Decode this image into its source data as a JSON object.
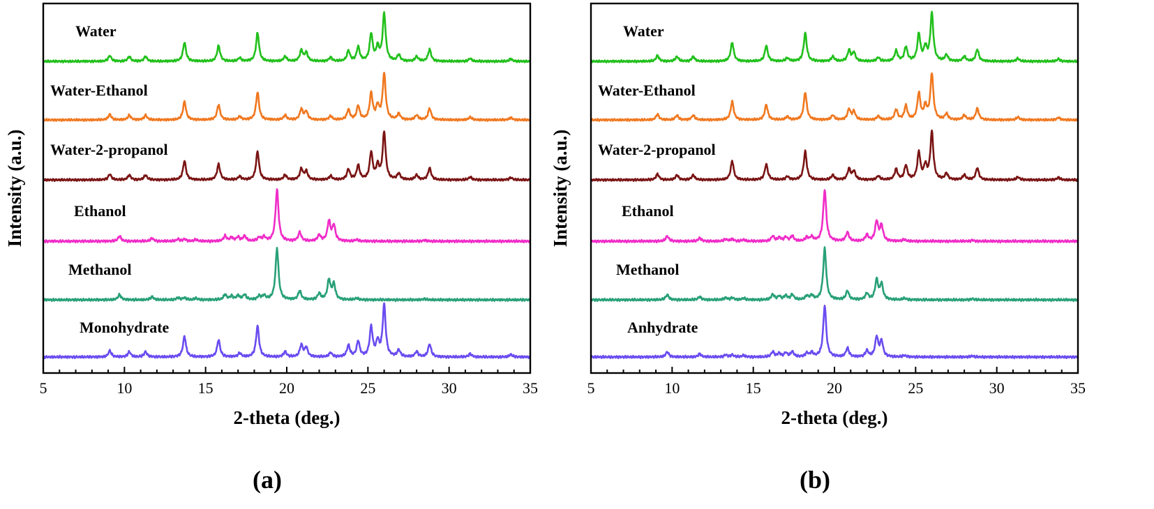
{
  "chart_data": [
    {
      "type": "line",
      "panel_label": "(a)",
      "xlabel": "2-theta (deg.)",
      "ylabel": "Intensity (a.u.)",
      "xlim": [
        5,
        35
      ],
      "xticks": [
        5,
        10,
        15,
        20,
        25,
        30,
        35
      ],
      "series": [
        {
          "name": "Water",
          "color": "#22c01c",
          "pattern": "A",
          "peaks": [
            [
              9.1,
              0.12
            ],
            [
              10.3,
              0.1
            ],
            [
              11.3,
              0.1
            ],
            [
              13.7,
              0.4
            ],
            [
              15.8,
              0.33
            ],
            [
              17.1,
              0.07
            ],
            [
              18.2,
              0.6
            ],
            [
              19.9,
              0.1
            ],
            [
              20.9,
              0.23
            ],
            [
              21.2,
              0.18
            ],
            [
              22.7,
              0.08
            ],
            [
              23.8,
              0.22
            ],
            [
              24.4,
              0.3
            ],
            [
              25.2,
              0.57
            ],
            [
              25.6,
              0.28
            ],
            [
              26.0,
              1.0
            ],
            [
              26.9,
              0.13
            ],
            [
              28.0,
              0.1
            ],
            [
              28.8,
              0.25
            ],
            [
              31.3,
              0.06
            ],
            [
              33.8,
              0.05
            ]
          ]
        },
        {
          "name": "Water-Ethanol",
          "color": "#f07820",
          "pattern": "A",
          "peaks": [
            [
              9.1,
              0.12
            ],
            [
              10.3,
              0.1
            ],
            [
              11.3,
              0.1
            ],
            [
              13.7,
              0.4
            ],
            [
              15.8,
              0.33
            ],
            [
              17.1,
              0.07
            ],
            [
              18.2,
              0.6
            ],
            [
              19.9,
              0.1
            ],
            [
              20.9,
              0.23
            ],
            [
              21.2,
              0.18
            ],
            [
              22.7,
              0.08
            ],
            [
              23.8,
              0.22
            ],
            [
              24.4,
              0.3
            ],
            [
              25.2,
              0.57
            ],
            [
              25.6,
              0.28
            ],
            [
              26.0,
              1.0
            ],
            [
              26.9,
              0.13
            ],
            [
              28.0,
              0.1
            ],
            [
              28.8,
              0.25
            ],
            [
              31.3,
              0.06
            ],
            [
              33.8,
              0.05
            ]
          ]
        },
        {
          "name": "Water-2-propanol",
          "color": "#7a1414",
          "pattern": "A",
          "peaks": [
            [
              9.1,
              0.12
            ],
            [
              10.3,
              0.1
            ],
            [
              11.3,
              0.1
            ],
            [
              13.7,
              0.4
            ],
            [
              15.8,
              0.33
            ],
            [
              17.1,
              0.07
            ],
            [
              18.2,
              0.6
            ],
            [
              19.9,
              0.1
            ],
            [
              20.9,
              0.23
            ],
            [
              21.2,
              0.18
            ],
            [
              22.7,
              0.08
            ],
            [
              23.8,
              0.22
            ],
            [
              24.4,
              0.3
            ],
            [
              25.2,
              0.57
            ],
            [
              25.6,
              0.28
            ],
            [
              26.0,
              1.0
            ],
            [
              26.9,
              0.13
            ],
            [
              28.0,
              0.1
            ],
            [
              28.8,
              0.25
            ],
            [
              31.3,
              0.06
            ],
            [
              33.8,
              0.05
            ]
          ]
        },
        {
          "name": "Ethanol",
          "color": "#f02cc8",
          "pattern": "B",
          "peaks": [
            [
              9.7,
              0.1
            ],
            [
              11.7,
              0.06
            ],
            [
              13.3,
              0.04
            ],
            [
              13.7,
              0.04
            ],
            [
              14.4,
              0.03
            ],
            [
              16.2,
              0.1
            ],
            [
              16.6,
              0.07
            ],
            [
              17.0,
              0.08
            ],
            [
              17.4,
              0.1
            ],
            [
              18.3,
              0.07
            ],
            [
              18.6,
              0.08
            ],
            [
              19.4,
              1.0
            ],
            [
              20.8,
              0.17
            ],
            [
              22.0,
              0.12
            ],
            [
              22.6,
              0.38
            ],
            [
              22.9,
              0.3
            ],
            [
              24.3,
              0.03
            ],
            [
              28.5,
              0.02
            ]
          ]
        },
        {
          "name": "Methanol",
          "color": "#28a078",
          "pattern": "B",
          "peaks": [
            [
              9.7,
              0.1
            ],
            [
              11.7,
              0.06
            ],
            [
              13.3,
              0.04
            ],
            [
              13.7,
              0.04
            ],
            [
              14.4,
              0.03
            ],
            [
              16.2,
              0.1
            ],
            [
              16.6,
              0.07
            ],
            [
              17.0,
              0.08
            ],
            [
              17.4,
              0.1
            ],
            [
              18.3,
              0.07
            ],
            [
              18.6,
              0.08
            ],
            [
              19.4,
              1.0
            ],
            [
              20.8,
              0.17
            ],
            [
              22.0,
              0.12
            ],
            [
              22.6,
              0.38
            ],
            [
              22.9,
              0.3
            ],
            [
              24.3,
              0.03
            ],
            [
              28.5,
              0.02
            ]
          ]
        },
        {
          "name": "Monohydrate",
          "color": "#6a4cf0",
          "pattern": "A",
          "peaks": [
            [
              9.1,
              0.12
            ],
            [
              10.3,
              0.1
            ],
            [
              11.3,
              0.1
            ],
            [
              13.7,
              0.4
            ],
            [
              15.8,
              0.33
            ],
            [
              17.1,
              0.07
            ],
            [
              18.2,
              0.6
            ],
            [
              19.9,
              0.1
            ],
            [
              20.9,
              0.23
            ],
            [
              21.2,
              0.18
            ],
            [
              22.7,
              0.08
            ],
            [
              23.8,
              0.22
            ],
            [
              24.4,
              0.3
            ],
            [
              25.2,
              0.57
            ],
            [
              25.6,
              0.28
            ],
            [
              26.0,
              1.0
            ],
            [
              26.9,
              0.13
            ],
            [
              28.0,
              0.1
            ],
            [
              28.8,
              0.25
            ],
            [
              31.3,
              0.06
            ],
            [
              33.8,
              0.05
            ]
          ]
        }
      ]
    },
    {
      "type": "line",
      "panel_label": "(b)",
      "xlabel": "2-theta (deg.)",
      "ylabel": "Intensity (a.u.)",
      "xlim": [
        5,
        35
      ],
      "xticks": [
        5,
        10,
        15,
        20,
        25,
        30,
        35
      ],
      "series": [
        {
          "name": "Water",
          "color": "#22c01c",
          "pattern": "A",
          "peaks": [
            [
              9.1,
              0.12
            ],
            [
              10.3,
              0.1
            ],
            [
              11.3,
              0.1
            ],
            [
              13.7,
              0.4
            ],
            [
              15.8,
              0.33
            ],
            [
              17.1,
              0.07
            ],
            [
              18.2,
              0.6
            ],
            [
              19.9,
              0.1
            ],
            [
              20.9,
              0.23
            ],
            [
              21.2,
              0.18
            ],
            [
              22.7,
              0.08
            ],
            [
              23.8,
              0.22
            ],
            [
              24.4,
              0.3
            ],
            [
              25.2,
              0.57
            ],
            [
              25.6,
              0.28
            ],
            [
              26.0,
              1.0
            ],
            [
              26.9,
              0.13
            ],
            [
              28.0,
              0.1
            ],
            [
              28.8,
              0.25
            ],
            [
              31.3,
              0.06
            ],
            [
              33.8,
              0.05
            ]
          ]
        },
        {
          "name": "Water-Ethanol",
          "color": "#f07820",
          "pattern": "A",
          "peaks": [
            [
              9.1,
              0.12
            ],
            [
              10.3,
              0.1
            ],
            [
              11.3,
              0.1
            ],
            [
              13.7,
              0.4
            ],
            [
              15.8,
              0.33
            ],
            [
              17.1,
              0.07
            ],
            [
              18.2,
              0.6
            ],
            [
              19.9,
              0.1
            ],
            [
              20.9,
              0.23
            ],
            [
              21.2,
              0.18
            ],
            [
              22.7,
              0.08
            ],
            [
              23.8,
              0.22
            ],
            [
              24.4,
              0.3
            ],
            [
              25.2,
              0.57
            ],
            [
              25.6,
              0.28
            ],
            [
              26.0,
              1.0
            ],
            [
              26.9,
              0.13
            ],
            [
              28.0,
              0.1
            ],
            [
              28.8,
              0.25
            ],
            [
              31.3,
              0.06
            ],
            [
              33.8,
              0.05
            ]
          ]
        },
        {
          "name": "Water-2-propanol",
          "color": "#7a1414",
          "pattern": "A",
          "peaks": [
            [
              9.1,
              0.12
            ],
            [
              10.3,
              0.1
            ],
            [
              11.3,
              0.1
            ],
            [
              13.7,
              0.4
            ],
            [
              15.8,
              0.33
            ],
            [
              17.1,
              0.07
            ],
            [
              18.2,
              0.6
            ],
            [
              19.9,
              0.1
            ],
            [
              20.9,
              0.23
            ],
            [
              21.2,
              0.18
            ],
            [
              22.7,
              0.08
            ],
            [
              23.8,
              0.22
            ],
            [
              24.4,
              0.3
            ],
            [
              25.2,
              0.57
            ],
            [
              25.6,
              0.28
            ],
            [
              26.0,
              1.0
            ],
            [
              26.9,
              0.13
            ],
            [
              28.0,
              0.1
            ],
            [
              28.8,
              0.25
            ],
            [
              31.3,
              0.06
            ],
            [
              33.8,
              0.05
            ]
          ]
        },
        {
          "name": "Ethanol",
          "color": "#f02cc8",
          "pattern": "B",
          "peaks": [
            [
              9.7,
              0.1
            ],
            [
              11.7,
              0.06
            ],
            [
              13.3,
              0.04
            ],
            [
              13.7,
              0.04
            ],
            [
              14.4,
              0.03
            ],
            [
              16.2,
              0.1
            ],
            [
              16.6,
              0.07
            ],
            [
              17.0,
              0.08
            ],
            [
              17.4,
              0.1
            ],
            [
              18.3,
              0.07
            ],
            [
              18.6,
              0.08
            ],
            [
              19.4,
              1.0
            ],
            [
              20.8,
              0.17
            ],
            [
              22.0,
              0.12
            ],
            [
              22.6,
              0.38
            ],
            [
              22.9,
              0.3
            ],
            [
              24.3,
              0.03
            ],
            [
              28.5,
              0.02
            ]
          ]
        },
        {
          "name": "Methanol",
          "color": "#28a078",
          "pattern": "B",
          "peaks": [
            [
              9.7,
              0.1
            ],
            [
              11.7,
              0.06
            ],
            [
              13.3,
              0.04
            ],
            [
              13.7,
              0.04
            ],
            [
              14.4,
              0.03
            ],
            [
              16.2,
              0.1
            ],
            [
              16.6,
              0.07
            ],
            [
              17.0,
              0.08
            ],
            [
              17.4,
              0.1
            ],
            [
              18.3,
              0.07
            ],
            [
              18.6,
              0.08
            ],
            [
              19.4,
              1.0
            ],
            [
              20.8,
              0.17
            ],
            [
              22.0,
              0.12
            ],
            [
              22.6,
              0.38
            ],
            [
              22.9,
              0.3
            ],
            [
              24.3,
              0.03
            ],
            [
              28.5,
              0.02
            ]
          ]
        },
        {
          "name": "Anhydrate",
          "color": "#6a4cf0",
          "pattern": "B",
          "peaks": [
            [
              9.7,
              0.1
            ],
            [
              11.7,
              0.06
            ],
            [
              13.3,
              0.04
            ],
            [
              13.7,
              0.04
            ],
            [
              14.4,
              0.03
            ],
            [
              16.2,
              0.1
            ],
            [
              16.6,
              0.07
            ],
            [
              17.0,
              0.08
            ],
            [
              17.4,
              0.1
            ],
            [
              18.3,
              0.07
            ],
            [
              18.6,
              0.08
            ],
            [
              19.4,
              1.0
            ],
            [
              20.8,
              0.17
            ],
            [
              22.0,
              0.12
            ],
            [
              22.6,
              0.38
            ],
            [
              22.9,
              0.3
            ],
            [
              24.3,
              0.03
            ],
            [
              28.5,
              0.02
            ]
          ]
        }
      ]
    }
  ]
}
